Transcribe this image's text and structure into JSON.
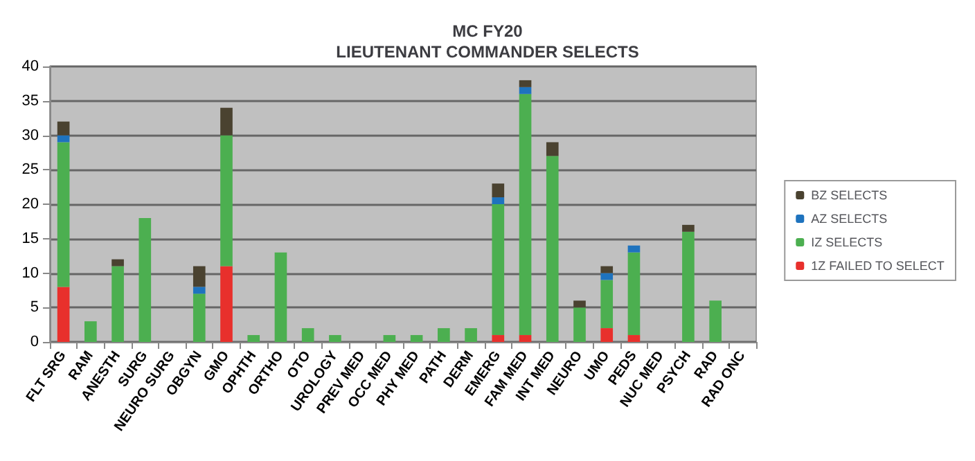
{
  "chart_data": {
    "type": "bar",
    "stacked": true,
    "title": "MC FY20\nLIEUTENANT COMMANDER SELECTS",
    "categories": [
      "FLT SRG",
      "RAM",
      "ANESTH",
      "SURG",
      "NEURO SURG",
      "OBGYN",
      "GMO",
      "OPHTH",
      "ORTHO",
      "OTO",
      "UROLOGY",
      "PREV MED",
      "OCC MED",
      "PHY MED",
      "PATH",
      "DERM",
      "EMERG",
      "FAM MED",
      "INT MED",
      "NEURO",
      "UMO",
      "PEDS",
      "NUC MED",
      "PSYCH",
      "RAD",
      "RAD ONC"
    ],
    "series": [
      {
        "name": "1Z FAILED TO SELECT",
        "color": "#e8302c",
        "values": [
          8,
          0,
          0,
          0,
          0,
          0,
          11,
          0,
          0,
          0,
          0,
          0,
          0,
          0,
          0,
          0,
          1,
          1,
          0,
          0,
          2,
          1,
          0,
          0,
          0,
          0
        ]
      },
      {
        "name": "IZ SELECTS",
        "color": "#4caf50",
        "values": [
          21,
          3,
          11,
          18,
          0,
          7,
          19,
          1,
          13,
          2,
          1,
          0,
          1,
          1,
          2,
          2,
          19,
          35,
          27,
          5,
          7,
          12,
          0,
          16,
          6,
          0
        ]
      },
      {
        "name": "AZ SELECTS",
        "color": "#1e73be",
        "values": [
          1,
          0,
          0,
          0,
          0,
          1,
          0,
          0,
          0,
          0,
          0,
          0,
          0,
          0,
          0,
          0,
          1,
          1,
          0,
          0,
          1,
          1,
          0,
          0,
          0,
          0
        ]
      },
      {
        "name": "BZ SELECTS",
        "color": "#4a4230",
        "values": [
          2,
          0,
          1,
          0,
          0,
          3,
          4,
          0,
          0,
          0,
          0,
          0,
          0,
          0,
          0,
          0,
          2,
          1,
          2,
          1,
          1,
          0,
          0,
          1,
          0,
          0
        ]
      }
    ],
    "ylim": [
      0,
      40
    ],
    "yticks": [
      0,
      5,
      10,
      15,
      20,
      25,
      30,
      35,
      40
    ],
    "grid": "y",
    "legend": "right"
  }
}
